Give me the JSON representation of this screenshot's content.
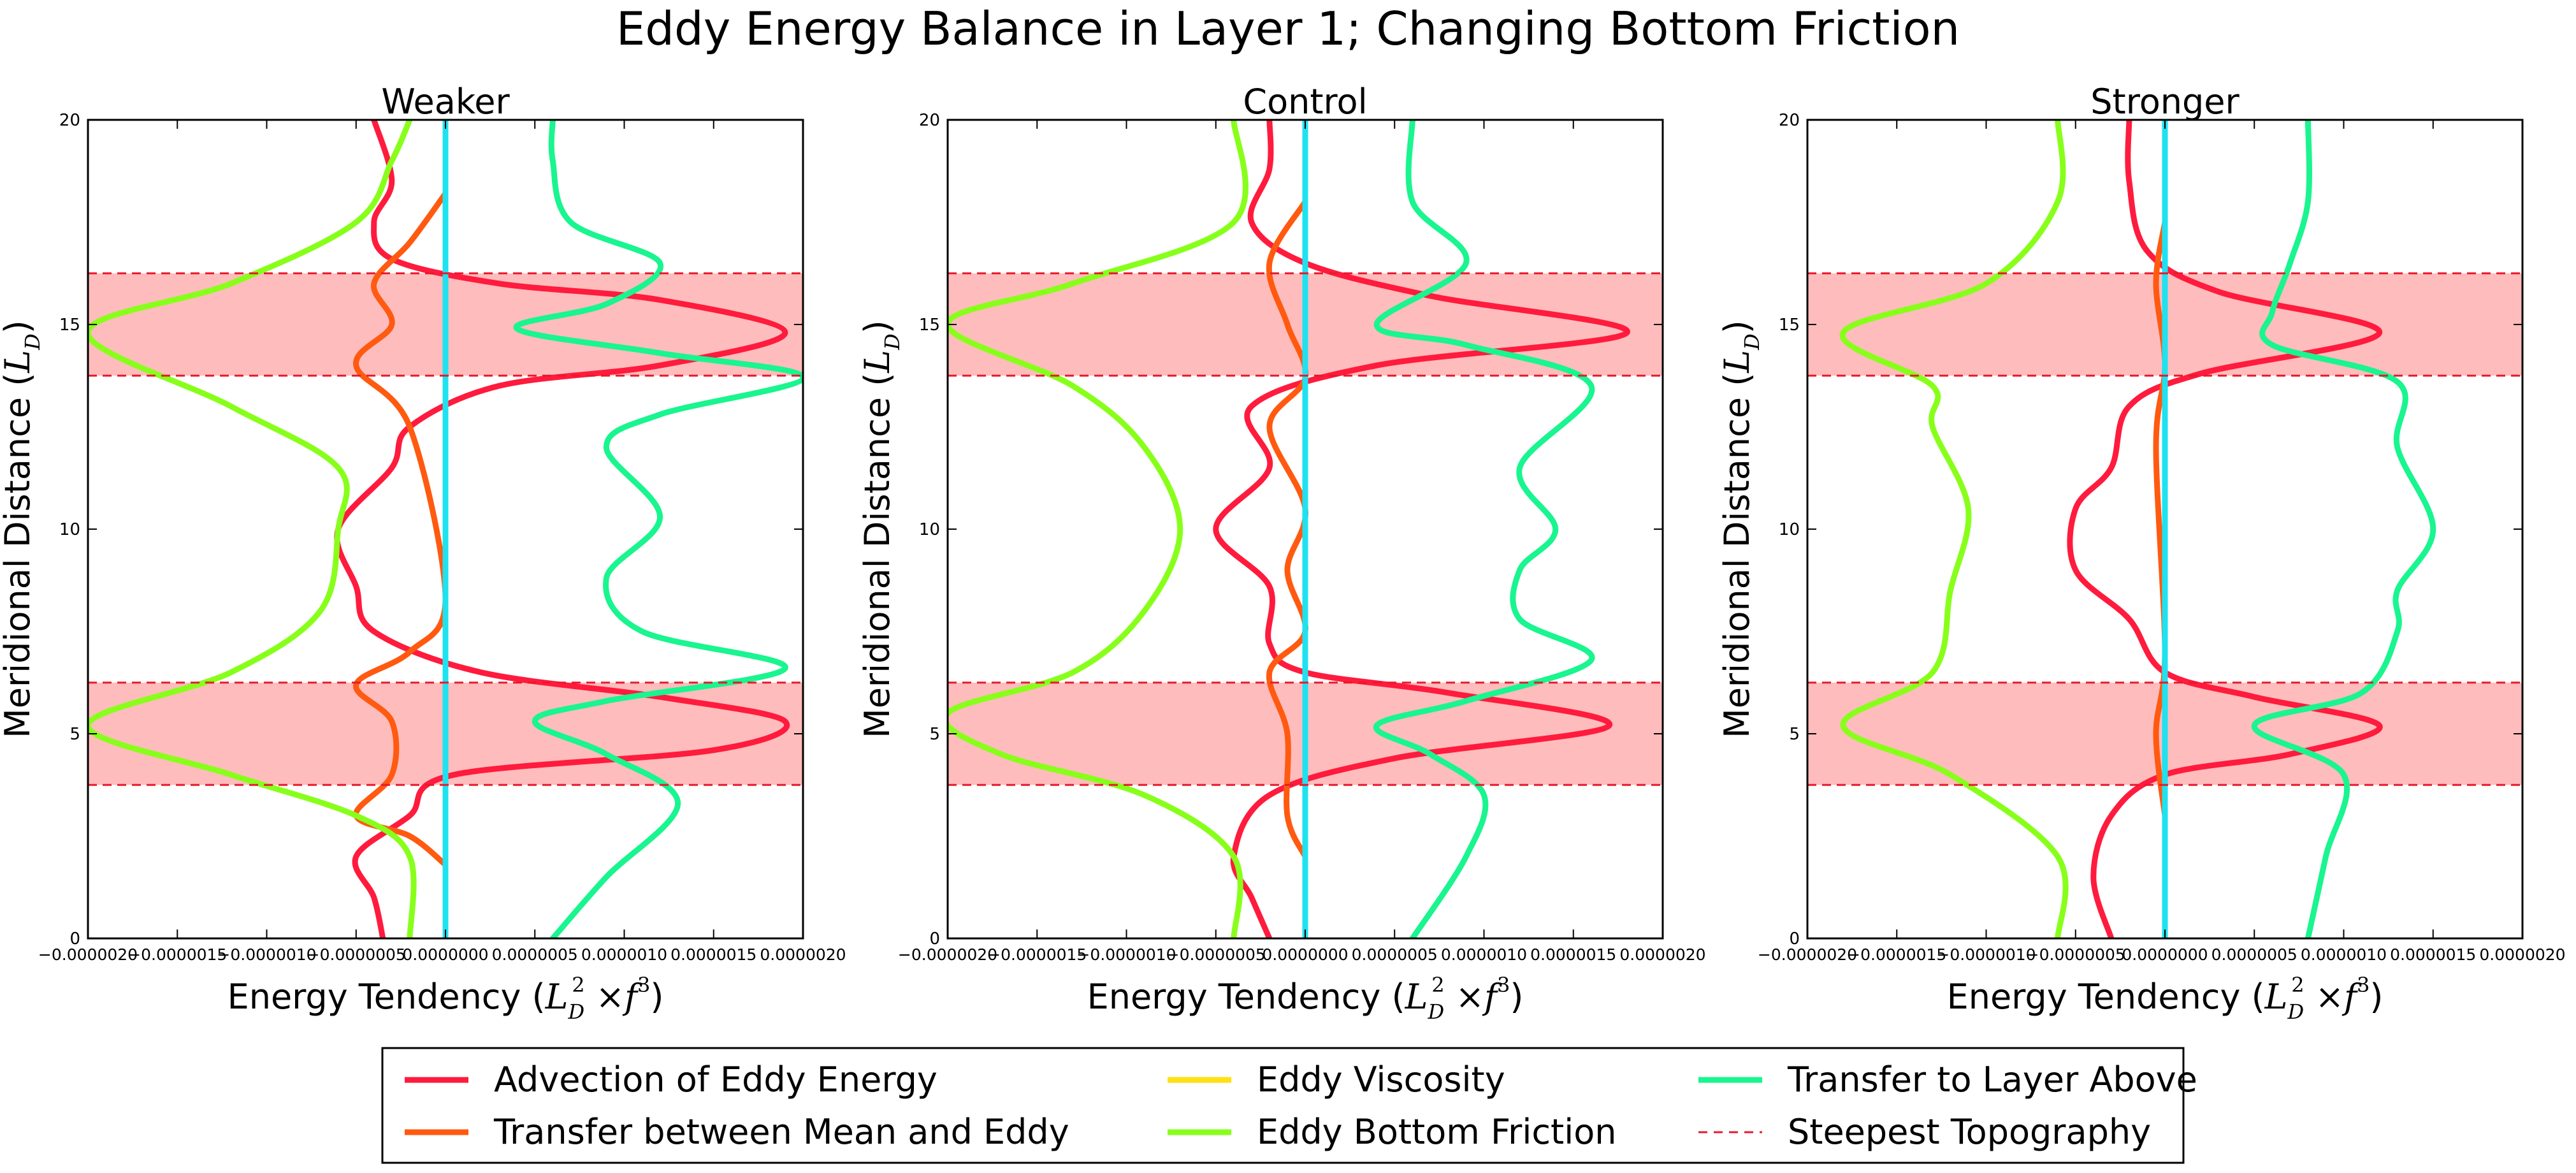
{
  "figure": {
    "suptitle": "Eddy Energy Balance in Layer 1; Changing Bottom Friction"
  },
  "chart_data": [
    {
      "type": "line",
      "title": "Weaker",
      "xlabel_prefix": "Energy Tendency (",
      "xlabel_math": "L",
      "xlabel_suffix": ")",
      "ylabel_prefix": "Meridional Distance (",
      "ylabel_math": "L",
      "ylabel_suffix": ")",
      "xlim": [
        -2e-06,
        2e-06
      ],
      "ylim": [
        0,
        20
      ],
      "xticks": [
        "−0.0000020",
        "−0.0000015",
        "−0.0000010",
        "−0.0000005",
        "0.0000000",
        "0.0000005",
        "0.0000010",
        "0.0000015",
        "0.0000020"
      ],
      "yticks": [
        "0",
        "5",
        "10",
        "15",
        "20"
      ],
      "bands": [
        [
          3.75,
          6.25
        ],
        [
          13.75,
          16.25
        ]
      ],
      "series": [
        {
          "name": "Advection of Eddy Energy",
          "color": "#ff1b3d",
          "points": [
            [
              -3.5e-07,
              0
            ],
            [
              -4e-07,
              1
            ],
            [
              -5e-07,
              2
            ],
            [
              -2e-07,
              3
            ],
            [
              5e-08,
              4
            ],
            [
              1.5e-06,
              4.6
            ],
            [
              1.9e-06,
              5.3
            ],
            [
              1.2e-06,
              5.9
            ],
            [
              2e-07,
              6.5
            ],
            [
              -4e-07,
              7.5
            ],
            [
              -5e-07,
              8.6
            ],
            [
              -6e-07,
              10
            ],
            [
              -3e-07,
              11.5
            ],
            [
              -2e-07,
              12.5
            ],
            [
              3e-07,
              13.5
            ],
            [
              1.2e-06,
              14
            ],
            [
              1.9e-06,
              14.8
            ],
            [
              1.2e-06,
              15.6
            ],
            [
              3e-07,
              16
            ],
            [
              -3e-07,
              16.6
            ],
            [
              -4e-07,
              17.5
            ],
            [
              -3e-07,
              18.5
            ],
            [
              -4e-07,
              20
            ]
          ]
        },
        {
          "name": "Transfer between Mean and Eddy",
          "color": "#ff5a10",
          "points": [
            [
              0,
              1.8
            ],
            [
              -2e-07,
              2.5
            ],
            [
              -5e-07,
              3
            ],
            [
              -3e-07,
              4
            ],
            [
              -3e-07,
              5.3
            ],
            [
              -5e-07,
              6.2
            ],
            [
              -2e-07,
              7
            ],
            [
              0,
              8.3
            ],
            [
              -2e-07,
              12.5
            ],
            [
              -5e-07,
              14
            ],
            [
              -3e-07,
              15
            ],
            [
              -4e-07,
              16
            ],
            [
              -2e-07,
              17
            ],
            [
              0,
              18.2
            ]
          ]
        },
        {
          "name": "Eddy Viscosity",
          "color": "#ffe012",
          "points": [
            [
              0,
              0
            ],
            [
              0,
              20
            ]
          ]
        },
        {
          "name": "Eddy Bottom Friction",
          "color": "#88ff1a",
          "points": [
            [
              -2e-07,
              0
            ],
            [
              -2e-07,
              2
            ],
            [
              -5e-07,
              3
            ],
            [
              -1.2e-06,
              4
            ],
            [
              -2e-06,
              5.2
            ],
            [
              -1.2e-06,
              6.5
            ],
            [
              -7e-07,
              8
            ],
            [
              -6e-07,
              10
            ],
            [
              -6e-07,
              11.5
            ],
            [
              -1.2e-06,
              13
            ],
            [
              -2e-06,
              14.8
            ],
            [
              -1.2e-06,
              16
            ],
            [
              -5e-07,
              17.5
            ],
            [
              -3e-07,
              19
            ],
            [
              -2e-07,
              20
            ]
          ]
        },
        {
          "name": "Transfer to Layer Above",
          "color": "#19f58f",
          "points": [
            [
              6e-07,
              0
            ],
            [
              9e-07,
              1.5
            ],
            [
              1.3e-06,
              3.3
            ],
            [
              9e-07,
              4.5
            ],
            [
              5e-07,
              5.3
            ],
            [
              9e-07,
              5.8
            ],
            [
              1.9e-06,
              6.6
            ],
            [
              1.1e-06,
              7.5
            ],
            [
              9e-07,
              8.8
            ],
            [
              1.2e-06,
              10.3
            ],
            [
              9e-07,
              12
            ],
            [
              1.2e-06,
              12.8
            ],
            [
              2e-06,
              13.7
            ],
            [
              1.2e-06,
              14.3
            ],
            [
              4e-07,
              14.9
            ],
            [
              9e-07,
              15.5
            ],
            [
              1.2e-06,
              16.5
            ],
            [
              7e-07,
              17.5
            ],
            [
              6e-07,
              19
            ],
            [
              6e-07,
              20
            ]
          ]
        },
        {
          "name": "Steepest Topography",
          "color": "#e8192c",
          "dashed": true,
          "hlines": [
            3.75,
            6.25,
            13.75,
            16.25
          ]
        }
      ]
    },
    {
      "type": "line",
      "title": "Control",
      "xlabel_prefix": "Energy Tendency (",
      "xlabel_math": "L",
      "xlabel_suffix": ")",
      "ylabel_prefix": "Meridional Distance (",
      "ylabel_math": "L",
      "ylabel_suffix": ")",
      "xlim": [
        -2e-06,
        2e-06
      ],
      "ylim": [
        0,
        20
      ],
      "xticks": [
        "−0.0000020",
        "−0.0000015",
        "−0.0000010",
        "−0.0000005",
        "0.0000000",
        "0.0000005",
        "0.0000010",
        "0.0000015",
        "0.0000020"
      ],
      "yticks": [
        "0",
        "5",
        "10",
        "15",
        "20"
      ],
      "bands": [
        [
          3.75,
          6.25
        ],
        [
          13.75,
          16.25
        ]
      ],
      "series": [
        {
          "name": "Advection of Eddy Energy",
          "color": "#ff1b3d",
          "points": [
            [
              -2e-07,
              0
            ],
            [
              -3e-07,
              1
            ],
            [
              -4e-07,
              2
            ],
            [
              -2e-07,
              3.5
            ],
            [
              5e-07,
              4.4
            ],
            [
              1.7e-06,
              5.2
            ],
            [
              8e-07,
              6
            ],
            [
              0,
              6.5
            ],
            [
              -2e-07,
              7.2
            ],
            [
              -2e-07,
              8.6
            ],
            [
              -5e-07,
              10
            ],
            [
              -2e-07,
              11.5
            ],
            [
              -3e-07,
              13
            ],
            [
              4e-07,
              14
            ],
            [
              1.8e-06,
              14.8
            ],
            [
              7e-07,
              15.7
            ],
            [
              0,
              16.5
            ],
            [
              -3e-07,
              17.5
            ],
            [
              -2e-07,
              18.8
            ],
            [
              -2e-07,
              20
            ]
          ]
        },
        {
          "name": "Transfer between Mean and Eddy",
          "color": "#ff5a10",
          "points": [
            [
              0,
              2
            ],
            [
              -1e-07,
              3
            ],
            [
              -1e-07,
              5
            ],
            [
              -2e-07,
              6.5
            ],
            [
              0,
              7.5
            ],
            [
              -1e-07,
              9
            ],
            [
              0,
              10.5
            ],
            [
              -2e-07,
              12.5
            ],
            [
              0,
              13.7
            ],
            [
              -1e-07,
              15
            ],
            [
              -2e-07,
              16.5
            ],
            [
              0,
              18
            ]
          ]
        },
        {
          "name": "Eddy Viscosity",
          "color": "#ffe012",
          "points": [
            [
              0,
              0
            ],
            [
              0,
              20
            ]
          ]
        },
        {
          "name": "Eddy Bottom Friction",
          "color": "#88ff1a",
          "points": [
            [
              -4e-07,
              0
            ],
            [
              -4e-07,
              2
            ],
            [
              -9e-07,
              3.5
            ],
            [
              -1.7e-06,
              4.5
            ],
            [
              -2e-06,
              5.5
            ],
            [
              -1.3e-06,
              6.5
            ],
            [
              -9e-07,
              8
            ],
            [
              -7e-07,
              10
            ],
            [
              -9e-07,
              12
            ],
            [
              -1.3e-06,
              13.5
            ],
            [
              -2e-06,
              15
            ],
            [
              -1.3e-06,
              16
            ],
            [
              -4e-07,
              17.5
            ],
            [
              -4e-07,
              20
            ]
          ]
        },
        {
          "name": "Transfer to Layer Above",
          "color": "#19f58f",
          "points": [
            [
              6e-07,
              0
            ],
            [
              9e-07,
              2
            ],
            [
              1e-06,
              3.5
            ],
            [
              7e-07,
              4.5
            ],
            [
              4e-07,
              5.2
            ],
            [
              9e-07,
              5.8
            ],
            [
              1.6e-06,
              6.8
            ],
            [
              1.2e-06,
              7.8
            ],
            [
              1.2e-06,
              9
            ],
            [
              1.4e-06,
              10
            ],
            [
              1.2e-06,
              11.5
            ],
            [
              1.6e-06,
              13.5
            ],
            [
              9e-07,
              14.5
            ],
            [
              4e-07,
              15
            ],
            [
              9e-07,
              16.5
            ],
            [
              6e-07,
              18
            ],
            [
              6e-07,
              20
            ]
          ]
        },
        {
          "name": "Steepest Topography",
          "color": "#e8192c",
          "dashed": true,
          "hlines": [
            3.75,
            6.25,
            13.75,
            16.25
          ]
        }
      ]
    },
    {
      "type": "line",
      "title": "Stronger",
      "xlabel_prefix": "Energy Tendency (",
      "xlabel_math": "L",
      "xlabel_suffix": ")",
      "ylabel_prefix": "Meridional Distance (",
      "ylabel_math": "L",
      "ylabel_suffix": ")",
      "xlim": [
        -2e-06,
        2e-06
      ],
      "ylim": [
        0,
        20
      ],
      "xticks": [
        "−0.0000020",
        "−0.0000015",
        "−0.0000010",
        "−0.0000005",
        "0.0000000",
        "0.0000005",
        "0.0000010",
        "0.0000015",
        "0.0000020"
      ],
      "yticks": [
        "0",
        "5",
        "10",
        "15",
        "20"
      ],
      "bands": [
        [
          3.75,
          6.25
        ],
        [
          13.75,
          16.25
        ]
      ],
      "series": [
        {
          "name": "Advection of Eddy Energy",
          "color": "#ff1b3d",
          "points": [
            [
              -3e-07,
              0
            ],
            [
              -4e-07,
              1.5
            ],
            [
              -3e-07,
              3
            ],
            [
              0,
              4
            ],
            [
              7e-07,
              4.5
            ],
            [
              1.2e-06,
              5.2
            ],
            [
              5e-07,
              5.9
            ],
            [
              0,
              6.5
            ],
            [
              -2e-07,
              7.8
            ],
            [
              -5e-07,
              9
            ],
            [
              -5e-07,
              10.5
            ],
            [
              -3e-07,
              11.5
            ],
            [
              -2e-07,
              13
            ],
            [
              2e-07,
              13.8
            ],
            [
              1.2e-06,
              14.8
            ],
            [
              3e-07,
              15.8
            ],
            [
              -1e-07,
              16.8
            ],
            [
              -2e-07,
              18.5
            ],
            [
              -2e-07,
              20
            ]
          ]
        },
        {
          "name": "Transfer between Mean and Eddy",
          "color": "#ff5a10",
          "points": [
            [
              0,
              3
            ],
            [
              -5e-08,
              5
            ],
            [
              0,
              7
            ],
            [
              -5e-08,
              12
            ],
            [
              0,
              14
            ],
            [
              -5e-08,
              16
            ],
            [
              0,
              17.5
            ]
          ]
        },
        {
          "name": "Eddy Viscosity",
          "color": "#ffe012",
          "points": [
            [
              0,
              0
            ],
            [
              0,
              20
            ]
          ]
        },
        {
          "name": "Eddy Bottom Friction",
          "color": "#88ff1a",
          "points": [
            [
              -6e-07,
              0
            ],
            [
              -6e-07,
              2
            ],
            [
              -1.2e-06,
              4
            ],
            [
              -1.8e-06,
              5.2
            ],
            [
              -1.3e-06,
              6.5
            ],
            [
              -1.2e-06,
              8.5
            ],
            [
              -1.1e-06,
              10.5
            ],
            [
              -1.3e-06,
              12.5
            ],
            [
              -1.3e-06,
              13.5
            ],
            [
              -1.8e-06,
              14.8
            ],
            [
              -1e-06,
              16
            ],
            [
              -6e-07,
              18
            ],
            [
              -6e-07,
              20
            ]
          ]
        },
        {
          "name": "Transfer to Layer Above",
          "color": "#19f58f",
          "points": [
            [
              8e-07,
              0
            ],
            [
              9e-07,
              2
            ],
            [
              1e-06,
              4
            ],
            [
              5e-07,
              5.2
            ],
            [
              1.1e-06,
              6
            ],
            [
              1.3e-06,
              7.5
            ],
            [
              1.3e-06,
              8.5
            ],
            [
              1.5e-06,
              10
            ],
            [
              1.3e-06,
              12
            ],
            [
              1.3e-06,
              13.6
            ],
            [
              6e-07,
              14.5
            ],
            [
              6e-07,
              15.3
            ],
            [
              7e-07,
              16.5
            ],
            [
              8e-07,
              18
            ],
            [
              8e-07,
              20
            ]
          ]
        },
        {
          "name": "Steepest Topography",
          "color": "#e8192c",
          "dashed": true,
          "hlines": [
            3.75,
            6.25,
            13.75,
            16.25
          ]
        }
      ]
    }
  ],
  "legend": {
    "entries": [
      {
        "label": "Advection of Eddy Energy",
        "color": "#ff1b3d",
        "dashed": false
      },
      {
        "label": "Transfer between Mean and Eddy",
        "color": "#ff5a10",
        "dashed": false
      },
      {
        "label": "Eddy Viscosity",
        "color": "#ffe012",
        "dashed": false
      },
      {
        "label": "Eddy Bottom Friction",
        "color": "#88ff1a",
        "dashed": false
      },
      {
        "label": "Transfer to Layer Above",
        "color": "#19f58f",
        "dashed": false
      },
      {
        "label": "Steepest Topography",
        "color": "#e8192c",
        "dashed": true
      }
    ]
  },
  "colors": {
    "band": "#ffbcbc",
    "zero_line": "#1ee2f0"
  }
}
